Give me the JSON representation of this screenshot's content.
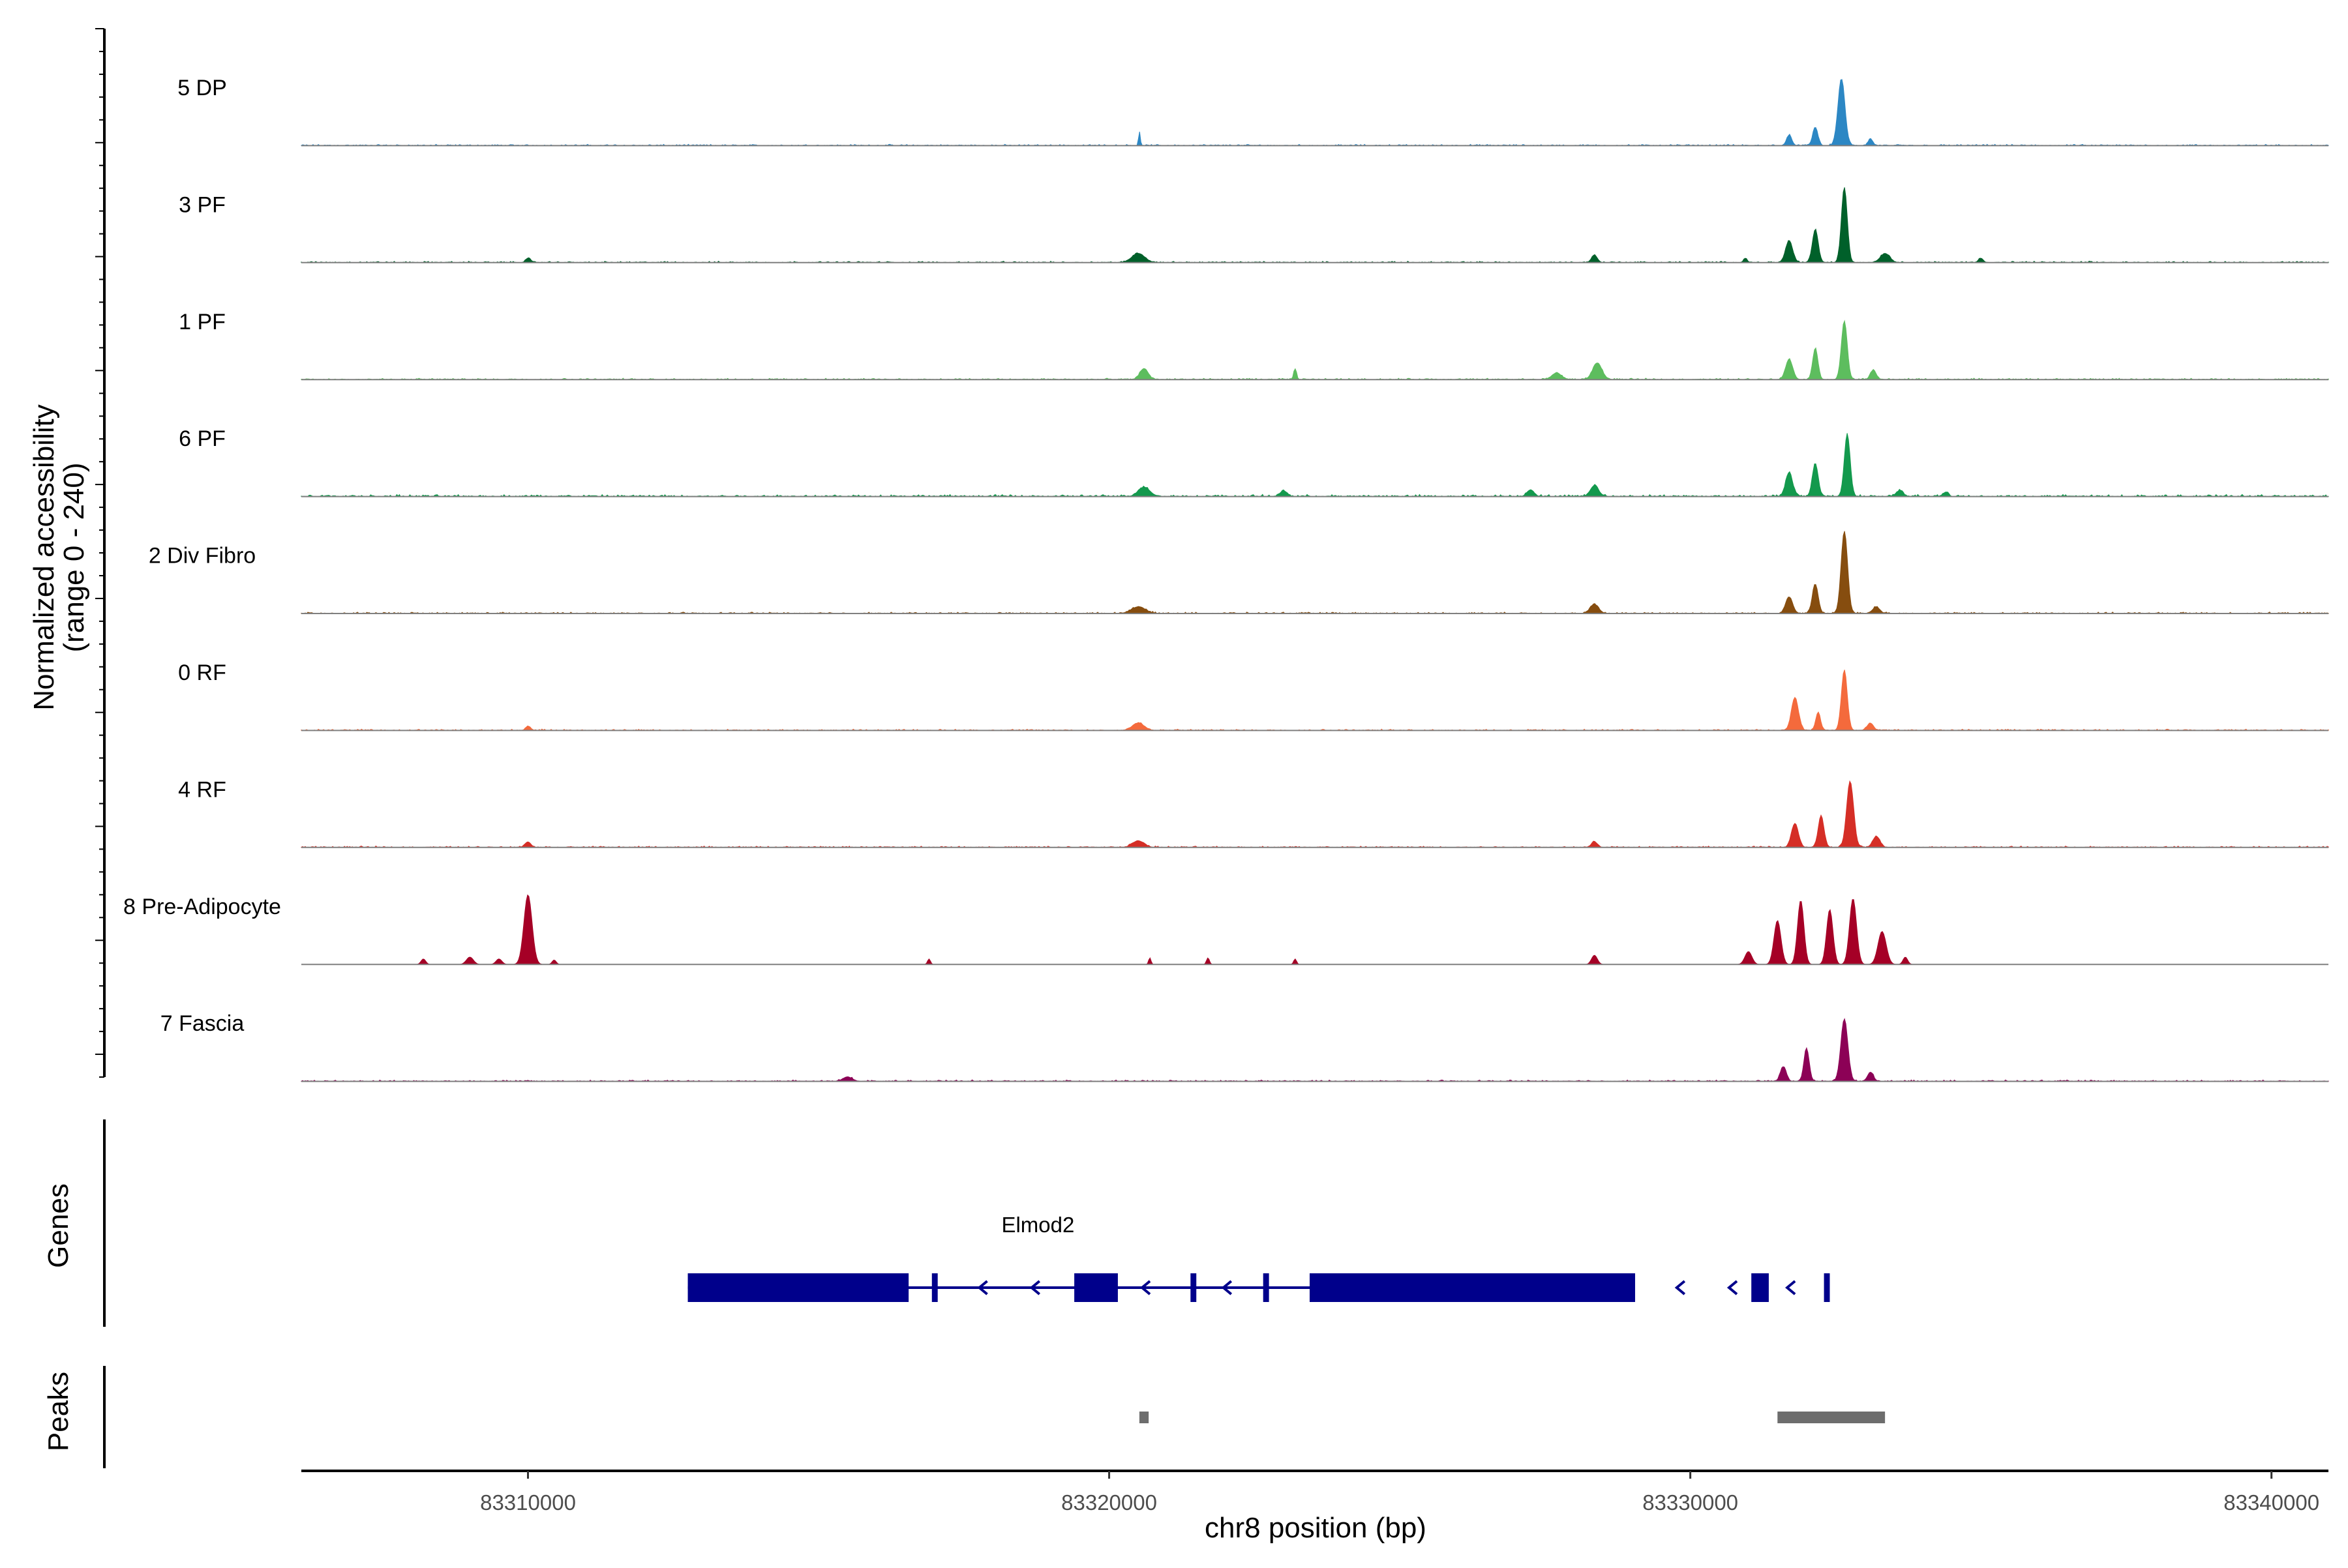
{
  "chart_data": {
    "type": "area",
    "title": "",
    "ylabel_line1": "Normalized accessibility",
    "ylabel_line2": "(range 0 - 240)",
    "ylim": [
      0,
      240
    ],
    "xlabel": "chr8 position (bp)",
    "xlim": [
      83306100,
      83340980
    ],
    "x_ticks": [
      83310000,
      83320000,
      83330000,
      83340000
    ],
    "x_tick_labels": [
      "83310000",
      "83320000",
      "83330000",
      "83340000"
    ],
    "genes_label": "Genes",
    "peaks_label": "Peaks",
    "series": [
      {
        "name": "5 DP",
        "color": "#2C87C4",
        "base": 2,
        "peaks": [
          [
            83320520,
            40,
            14
          ],
          [
            83331700,
            28,
            45
          ],
          [
            83332150,
            50,
            45
          ],
          [
            83332600,
            182,
            60
          ],
          [
            83333100,
            18,
            40
          ]
        ]
      },
      {
        "name": "3 PF",
        "color": "#00602A",
        "base": 2,
        "peaks": [
          [
            83310000,
            12,
            40
          ],
          [
            83320500,
            25,
            110
          ],
          [
            83328350,
            20,
            50
          ],
          [
            83330950,
            12,
            30
          ],
          [
            83331700,
            60,
            60
          ],
          [
            83332150,
            90,
            50
          ],
          [
            83332650,
            205,
            50
          ],
          [
            83333350,
            25,
            80
          ],
          [
            83335000,
            12,
            40
          ]
        ]
      },
      {
        "name": "1 PF",
        "color": "#5DBD5E",
        "base": 2,
        "peaks": [
          [
            83320600,
            30,
            70
          ],
          [
            83323200,
            28,
            25
          ],
          [
            83327700,
            18,
            80
          ],
          [
            83328400,
            45,
            80
          ],
          [
            83331700,
            55,
            60
          ],
          [
            83332150,
            85,
            45
          ],
          [
            83332650,
            160,
            50
          ],
          [
            83333150,
            25,
            50
          ]
        ]
      },
      {
        "name": "6 PF",
        "color": "#13994D",
        "base": 3,
        "peaks": [
          [
            83320600,
            25,
            100
          ],
          [
            83323000,
            15,
            60
          ],
          [
            83327250,
            18,
            60
          ],
          [
            83328350,
            30,
            70
          ],
          [
            83331700,
            65,
            60
          ],
          [
            83332150,
            90,
            50
          ],
          [
            83332700,
            170,
            50
          ],
          [
            83333600,
            15,
            60
          ],
          [
            83334400,
            12,
            40
          ]
        ]
      },
      {
        "name": "2 Div Fibro",
        "color": "#864D0F",
        "base": 2,
        "peaks": [
          [
            83320500,
            18,
            120
          ],
          [
            83328350,
            25,
            70
          ],
          [
            83331700,
            45,
            60
          ],
          [
            83332150,
            80,
            50
          ],
          [
            83332650,
            225,
            55
          ],
          [
            83333200,
            18,
            60
          ]
        ]
      },
      {
        "name": "0 RF",
        "color": "#F46A3C",
        "base": 2,
        "peaks": [
          [
            83310000,
            12,
            40
          ],
          [
            83320500,
            20,
            100
          ],
          [
            83331800,
            90,
            60
          ],
          [
            83332200,
            50,
            40
          ],
          [
            83332650,
            165,
            50
          ],
          [
            83333100,
            20,
            50
          ]
        ]
      },
      {
        "name": "4 RF",
        "color": "#D52E26",
        "base": 2,
        "peaks": [
          [
            83310000,
            15,
            50
          ],
          [
            83320500,
            18,
            100
          ],
          [
            83328350,
            15,
            50
          ],
          [
            83331800,
            65,
            60
          ],
          [
            83332250,
            85,
            50
          ],
          [
            83332750,
            180,
            60
          ],
          [
            83333200,
            30,
            60
          ]
        ]
      },
      {
        "name": "8 Pre-Adipocyte",
        "color": "#A50026",
        "base": 0,
        "peaks": [
          [
            83310000,
            190,
            70
          ],
          [
            83309500,
            15,
            50
          ],
          [
            83309000,
            20,
            60
          ],
          [
            83308200,
            15,
            40
          ],
          [
            83310450,
            12,
            35
          ],
          [
            83316900,
            15,
            25
          ],
          [
            83320700,
            18,
            20
          ],
          [
            83321700,
            18,
            25
          ],
          [
            83323200,
            15,
            25
          ],
          [
            83328350,
            25,
            50
          ],
          [
            83331000,
            35,
            60
          ],
          [
            83331500,
            120,
            60
          ],
          [
            83331900,
            175,
            55
          ],
          [
            83332400,
            150,
            55
          ],
          [
            83332800,
            180,
            60
          ],
          [
            83333300,
            90,
            70
          ],
          [
            83333700,
            20,
            40
          ]
        ]
      },
      {
        "name": "7 Fascia",
        "color": "#8C0156",
        "base": 2,
        "peaks": [
          [
            83315500,
            12,
            80
          ],
          [
            83331600,
            40,
            50
          ],
          [
            83332000,
            90,
            45
          ],
          [
            83332650,
            170,
            60
          ],
          [
            83333100,
            25,
            50
          ]
        ]
      }
    ],
    "gene": {
      "name": "Elmod2",
      "color": "#00008B",
      "strand": "-",
      "span": [
        83312750,
        83324800
      ],
      "exons": [
        [
          83312750,
          83316550
        ],
        [
          83316950,
          83317050
        ],
        [
          83319400,
          83320150
        ],
        [
          83321400,
          83321500
        ],
        [
          83322650,
          83322750
        ],
        [
          83323450,
          83329050
        ],
        [
          83331050,
          83331350
        ],
        [
          83332300,
          83332400
        ]
      ],
      "chevrons": [
        83317800,
        83318700,
        83320600,
        83322000,
        83329800,
        83330700,
        83331700
      ]
    },
    "peak_regions": [
      [
        83320520,
        83320680
      ],
      [
        83331500,
        83333350
      ]
    ]
  }
}
